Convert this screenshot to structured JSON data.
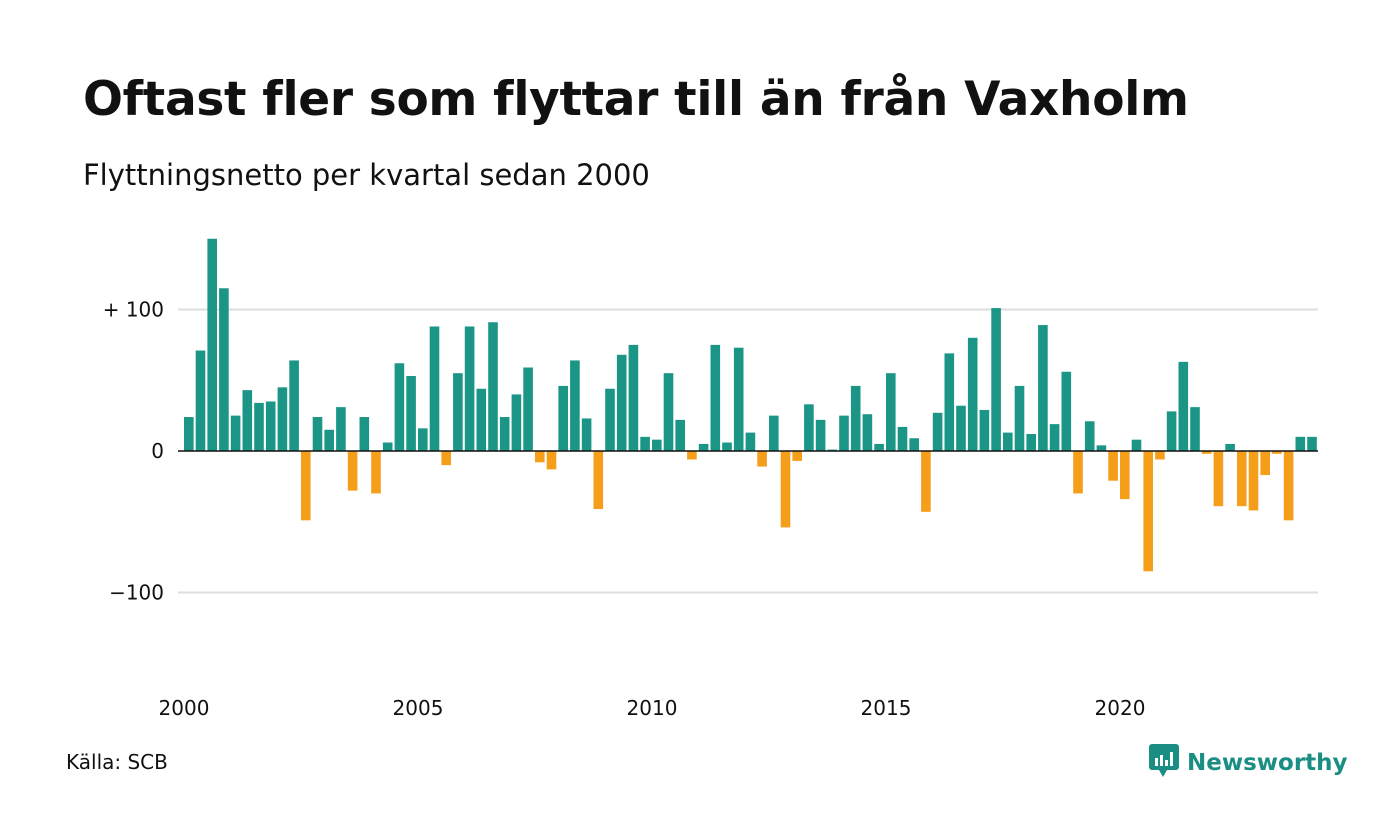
{
  "title": "Oftast fler som flyttar till än från Vaxholm",
  "subtitle": "Flyttningsnetto per kvartal sedan 2000",
  "source": "Källa: SCB",
  "brand": {
    "name": "Newsworthy",
    "icon": "newsworthy-logo-icon"
  },
  "colors": {
    "positive": "#1b9585",
    "negative": "#f59e1a",
    "grid": "#dddddd",
    "zero_line": "#111111",
    "brand": "#1b8e84"
  },
  "chart_data": {
    "type": "bar",
    "title": "Oftast fler som flyttar till än från Vaxholm",
    "subtitle": "Flyttningsnetto per kvartal sedan 2000",
    "x_start": "2000",
    "x_step": "kvartal",
    "x_ticks": [
      "2000",
      "2005",
      "2010",
      "2015",
      "2020"
    ],
    "y_ticks": [
      100,
      0,
      -100
    ],
    "y_tick_labels": [
      "+ 100",
      "0",
      "−100"
    ],
    "ylim": [
      -165,
      165
    ],
    "grid": true,
    "legend": "none",
    "values": [
      24,
      71,
      150,
      115,
      25,
      43,
      34,
      35,
      45,
      64,
      -49,
      24,
      15,
      31,
      -28,
      24,
      -30,
      6,
      62,
      53,
      16,
      88,
      -10,
      55,
      88,
      44,
      91,
      24,
      40,
      59,
      -8,
      -13,
      46,
      64,
      23,
      -41,
      44,
      68,
      75,
      10,
      8,
      55,
      22,
      -6,
      5,
      75,
      6,
      73,
      13,
      -11,
      25,
      -54,
      -7,
      33,
      22,
      1,
      25,
      46,
      26,
      5,
      55,
      17,
      9,
      -43,
      27,
      69,
      32,
      80,
      29,
      101,
      13,
      46,
      12,
      89,
      19,
      56,
      -30,
      21,
      4,
      -21,
      -34,
      8,
      -85,
      -6,
      28,
      63,
      31,
      -2,
      -39,
      5,
      -39,
      -42,
      -17,
      -2,
      -49,
      10,
      10
    ]
  }
}
